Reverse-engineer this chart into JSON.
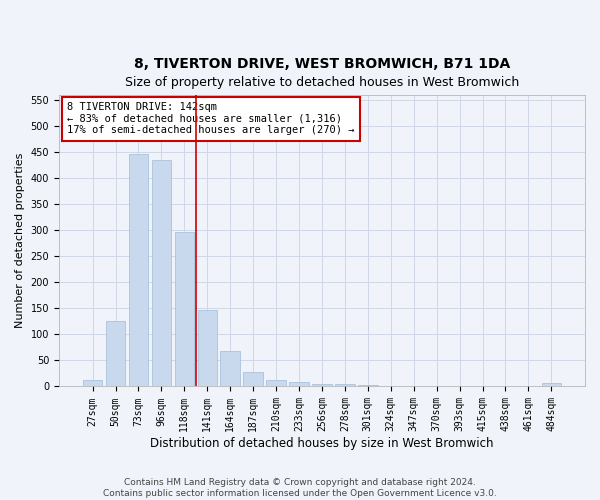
{
  "title": "8, TIVERTON DRIVE, WEST BROMWICH, B71 1DA",
  "subtitle": "Size of property relative to detached houses in West Bromwich",
  "xlabel": "Distribution of detached houses by size in West Bromwich",
  "ylabel": "Number of detached properties",
  "categories": [
    "27sqm",
    "50sqm",
    "73sqm",
    "96sqm",
    "118sqm",
    "141sqm",
    "164sqm",
    "187sqm",
    "210sqm",
    "233sqm",
    "256sqm",
    "278sqm",
    "301sqm",
    "324sqm",
    "347sqm",
    "370sqm",
    "393sqm",
    "415sqm",
    "438sqm",
    "461sqm",
    "484sqm"
  ],
  "values": [
    12,
    126,
    447,
    435,
    297,
    146,
    68,
    27,
    13,
    8,
    5,
    4,
    2,
    1,
    1,
    0,
    0,
    1,
    0,
    0,
    6
  ],
  "bar_color": "#c8d9ee",
  "bar_edgecolor": "#a0bcd8",
  "vline_color": "#cc0000",
  "vline_x": 4.5,
  "annotation_text": "8 TIVERTON DRIVE: 142sqm\n← 83% of detached houses are smaller (1,316)\n17% of semi-detached houses are larger (270) →",
  "annotation_box_color": "#ffffff",
  "annotation_box_edgecolor": "#cc0000",
  "footer": "Contains HM Land Registry data © Crown copyright and database right 2024.\nContains public sector information licensed under the Open Government Licence v3.0.",
  "ylim": [
    0,
    560
  ],
  "yticks": [
    0,
    50,
    100,
    150,
    200,
    250,
    300,
    350,
    400,
    450,
    500,
    550
  ],
  "title_fontsize": 10,
  "subtitle_fontsize": 9,
  "xlabel_fontsize": 8.5,
  "ylabel_fontsize": 8,
  "tick_fontsize": 7,
  "annotation_fontsize": 7.5,
  "footer_fontsize": 6.5,
  "grid_color": "#d0d8e8",
  "background_color": "#f0f4fa"
}
